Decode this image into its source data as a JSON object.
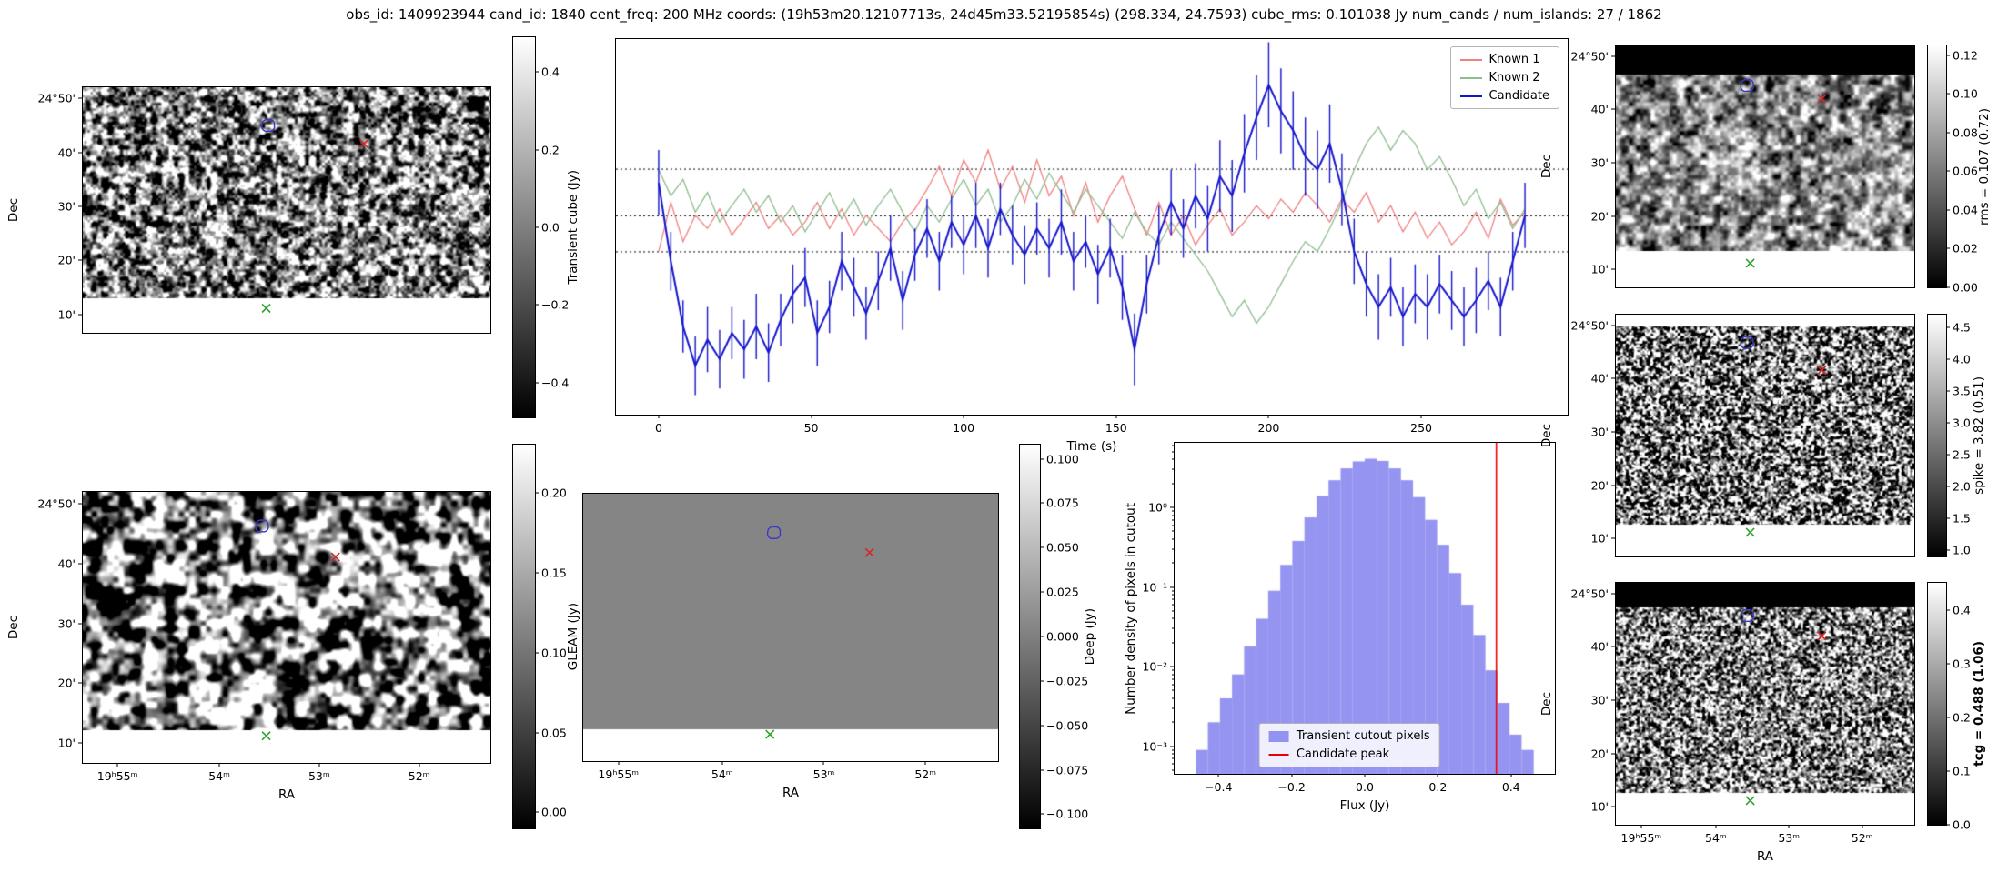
{
  "title": "obs_id: 1409923944 cand_id: 1840 cent_freq: 200 MHz coords: (19h53m20.12107713s, 24d45m33.52195854s) (298.334, 24.7593) cube_rms: 0.101038 Jy num_cands / num_islands: 27 / 1862",
  "colors": {
    "contour": "#3a3ac8",
    "red_x": "#d62728",
    "green_x": "#2ca02c",
    "hline": "#000000",
    "known1": "#f08080",
    "known2": "#8fbc8f",
    "candidate": "#1515cc",
    "hist_bar": "#7b7bee",
    "peak_line": "#e80000"
  },
  "axes": {
    "dec_label": "Dec",
    "ra_label": "RA",
    "dec_ticks": [
      "24°50'",
      "40'",
      "30'",
      "20'",
      "10'"
    ],
    "dec_fracs": [
      0.045,
      0.265,
      0.485,
      0.705,
      0.925
    ],
    "ra_ticks": [
      "19ʰ55ᵐ",
      "54ᵐ",
      "53ᵐ",
      "52ᵐ"
    ],
    "ra_fracs": [
      0.085,
      0.335,
      0.58,
      0.825
    ]
  },
  "panels": [
    {
      "id": "transient-cutout",
      "el": "transient-cutout-panel",
      "cb_el": "transient-colorbar",
      "noise": {
        "cell": 6,
        "contrast": 2.3,
        "seed": 11
      },
      "bottom_band": 0.14,
      "show_dec": true,
      "show_ra": false,
      "colorbar": {
        "label": "Transient cube (Jy)",
        "ticks": [
          "0.4",
          "0.2",
          "0.0",
          "−0.2",
          "−0.4"
        ],
        "tick_vals": [
          0.4,
          0.2,
          0,
          -0.2,
          -0.4
        ],
        "vmin": -0.49,
        "vmax": 0.49
      },
      "markers": {
        "contour": [
          0.455,
          0.16
        ],
        "red_x": [
          0.69,
          0.23
        ],
        "green_x": [
          0.45,
          0.9
        ]
      }
    },
    {
      "id": "gleam-cutout",
      "el": "gleam-cutout-panel",
      "cb_el": "gleam-colorbar",
      "noise": {
        "cell": 12,
        "contrast": 3.2,
        "seed": 77
      },
      "bottom_band": 0.12,
      "show_dec": true,
      "show_ra": true,
      "colorbar": {
        "label": "GLEAM (Jy)",
        "ticks": [
          "0.20",
          "0.15",
          "0.10",
          "0.05",
          "0.00"
        ],
        "tick_vals": [
          0.2,
          0.15,
          0.1,
          0.05,
          0
        ],
        "vmin": -0.01,
        "vmax": 0.23
      },
      "markers": {
        "contour": [
          0.44,
          0.13
        ],
        "red_x": [
          0.62,
          0.24
        ],
        "green_x": [
          0.45,
          0.9
        ]
      }
    },
    {
      "id": "deep-cutout",
      "el": "deep-cutout-panel",
      "cb_el": "deep-colorbar",
      "noise": {
        "cell": 8,
        "contrast": 0,
        "seed": 5
      },
      "bottom_band": 0.12,
      "show_dec": false,
      "show_ra": true,
      "colorbar": {
        "label": "Deep (Jy)",
        "ticks": [
          "0.100",
          "0.075",
          "0.050",
          "0.025",
          "0.000",
          "−0.025",
          "−0.050",
          "−0.075",
          "−0.100"
        ],
        "tick_vals": [
          0.1,
          0.075,
          0.05,
          0.025,
          0,
          -0.025,
          -0.05,
          -0.075,
          -0.1
        ],
        "vmin": -0.108,
        "vmax": 0.108
      },
      "markers": {
        "contour": [
          0.46,
          0.15
        ],
        "red_x": [
          0.69,
          0.22
        ],
        "green_x": [
          0.45,
          0.9
        ]
      }
    },
    {
      "id": "rms-cutout",
      "el": "rms-cutout-panel",
      "cb_el": "rms-colorbar",
      "noise": {
        "cell": 8,
        "contrast": 1.5,
        "seed": 31,
        "base": 0.03
      },
      "top_band": {
        "color": "#000000",
        "frac": 0.12
      },
      "bottom_band": 0.15,
      "show_dec": true,
      "show_ra": false,
      "colorbar": {
        "label": "rms = 0.107 (0.72)",
        "ticks": [
          "0.12",
          "0.10",
          "0.08",
          "0.06",
          "0.04",
          "0.02",
          "0.00"
        ],
        "tick_vals": [
          0.12,
          0.1,
          0.08,
          0.06,
          0.04,
          0.02,
          0
        ],
        "vmin": 0,
        "vmax": 0.125
      },
      "markers": {
        "contour": [
          0.44,
          0.17
        ],
        "red_x": [
          0.69,
          0.22
        ],
        "green_x": [
          0.45,
          0.9
        ]
      }
    },
    {
      "id": "spike-cutout",
      "el": "spike-cutout-panel",
      "cb_el": "spike-colorbar",
      "noise": {
        "cell": 3,
        "contrast": 2.6,
        "seed": 55,
        "base": -0.04
      },
      "top_band": {
        "color": "#ffffff",
        "frac": 0.05
      },
      "bottom_band": 0.13,
      "show_dec": true,
      "show_ra": false,
      "colorbar": {
        "label": "spike = 3.82 (0.51)",
        "ticks": [
          "4.5",
          "4.0",
          "3.5",
          "3.0",
          "2.5",
          "2.0",
          "1.5",
          "1.0"
        ],
        "tick_vals": [
          4.5,
          4,
          3.5,
          3,
          2.5,
          2,
          1.5,
          1
        ],
        "vmin": 0.9,
        "vmax": 4.7
      },
      "markers": {
        "contour": [
          0.44,
          0.12
        ],
        "red_x": [
          0.69,
          0.23
        ],
        "green_x": [
          0.45,
          0.9
        ]
      }
    },
    {
      "id": "tcg-cutout",
      "el": "tcg-cutout-panel",
      "cb_el": "tcg-colorbar",
      "noise": {
        "cell": 3,
        "contrast": 2.3,
        "seed": 99
      },
      "top_band": {
        "color": "#000000",
        "frac": 0.1
      },
      "bottom_band": 0.13,
      "show_dec": true,
      "show_ra": true,
      "colorbar": {
        "label": "tcg = 0.488 (1.06)",
        "bold": true,
        "ticks": [
          "0.4",
          "0.3",
          "0.2",
          "0.1",
          "0.0"
        ],
        "tick_vals": [
          0.4,
          0.3,
          0.2,
          0.1,
          0
        ],
        "vmin": 0,
        "vmax": 0.45
      },
      "markers": {
        "contour": [
          0.44,
          0.14
        ],
        "red_x": [
          0.69,
          0.22
        ],
        "green_x": [
          0.45,
          0.9
        ]
      }
    }
  ],
  "chart_data": [
    {
      "id": "lightcurve",
      "type": "line",
      "xlabel": "Time (s)",
      "x": {
        "start": 0,
        "step": 4,
        "count": 72
      },
      "x_ticks": [
        0,
        50,
        100,
        150,
        200,
        250
      ],
      "x_tick_labels": [
        "0",
        "50",
        "100",
        "150",
        "200",
        "250"
      ],
      "xlim": [
        -14,
        298
      ],
      "ylim": [
        -0.45,
        0.7
      ],
      "hlines": [
        0.303,
        0.16,
        0.05
      ],
      "hline_style": "dotted",
      "legend_position": "upper right",
      "series": [
        {
          "name": "Known 1",
          "color": "#f08080",
          "lw": 1.3,
          "values": [
            0.05,
            0.2,
            0.08,
            0.16,
            0.12,
            0.18,
            0.1,
            0.15,
            0.2,
            0.12,
            0.16,
            0.1,
            0.14,
            0.2,
            0.12,
            0.18,
            0.1,
            0.16,
            0.12,
            0.08,
            0.14,
            0.18,
            0.24,
            0.31,
            0.22,
            0.33,
            0.26,
            0.36,
            0.24,
            0.31,
            0.2,
            0.33,
            0.22,
            0.28,
            0.16,
            0.26,
            0.14,
            0.22,
            0.28,
            0.18,
            0.1,
            0.2,
            0.1,
            0.16,
            0.07,
            0.13,
            0.18,
            0.1,
            0.14,
            0.19,
            0.15,
            0.21,
            0.17,
            0.23,
            0.19,
            0.14,
            0.21,
            0.17,
            0.23,
            0.14,
            0.19,
            0.11,
            0.17,
            0.09,
            0.14,
            0.07,
            0.11,
            0.17,
            0.09,
            0.21,
            0.13,
            0.17
          ]
        },
        {
          "name": "Known 2",
          "color": "#8fbc8f",
          "lw": 1.3,
          "values": [
            0.3,
            0.22,
            0.27,
            0.17,
            0.23,
            0.14,
            0.19,
            0.24,
            0.17,
            0.22,
            0.14,
            0.19,
            0.11,
            0.17,
            0.23,
            0.15,
            0.21,
            0.13,
            0.19,
            0.24,
            0.17,
            0.11,
            0.19,
            0.14,
            0.21,
            0.27,
            0.19,
            0.24,
            0.14,
            0.19,
            0.27,
            0.21,
            0.29,
            0.23,
            0.17,
            0.24,
            0.19,
            0.14,
            0.09,
            0.17,
            0.11,
            0.07,
            0.14,
            0.09,
            0.04,
            -0.01,
            -0.08,
            -0.15,
            -0.1,
            -0.17,
            -0.12,
            -0.05,
            0.02,
            0.08,
            0.05,
            0.12,
            0.2,
            0.3,
            0.38,
            0.43,
            0.36,
            0.42,
            0.38,
            0.3,
            0.34,
            0.27,
            0.19,
            0.24,
            0.15,
            0.2,
            0.12,
            0.18
          ]
        },
        {
          "name": "Candidate",
          "color": "#1515cc",
          "lw": 2,
          "values": [
            0.26,
            0.02,
            -0.18,
            -0.3,
            -0.22,
            -0.28,
            -0.2,
            -0.25,
            -0.18,
            -0.26,
            -0.16,
            -0.08,
            -0.03,
            -0.2,
            -0.12,
            0.02,
            -0.06,
            -0.14,
            -0.04,
            0.06,
            -0.1,
            0.04,
            0.12,
            0.02,
            0.14,
            0.07,
            0.16,
            0.06,
            0.18,
            0.1,
            0.04,
            0.12,
            0.06,
            0.14,
            0.02,
            0.08,
            -0.02,
            0.06,
            -0.06,
            -0.25,
            -0.05,
            0.1,
            0.2,
            0.12,
            0.22,
            0.15,
            0.28,
            0.22,
            0.35,
            0.46,
            0.56,
            0.48,
            0.42,
            0.34,
            0.3,
            0.38,
            0.24,
            0.05,
            -0.05,
            -0.12,
            -0.06,
            -0.15,
            -0.08,
            -0.12,
            -0.05,
            -0.1,
            -0.15,
            -0.1,
            -0.04,
            -0.12,
            0.02,
            0.16
          ],
          "yerr": [
            0.1,
            0.09,
            0.08,
            0.09,
            0.1,
            0.09,
            0.08,
            0.09,
            0.1,
            0.09,
            0.08,
            0.09,
            0.09,
            0.1,
            0.08,
            0.09,
            0.09,
            0.08,
            0.09,
            0.1,
            0.09,
            0.08,
            0.09,
            0.09,
            0.08,
            0.09,
            0.1,
            0.09,
            0.08,
            0.09,
            0.09,
            0.08,
            0.09,
            0.1,
            0.09,
            0.08,
            0.09,
            0.09,
            0.1,
            0.11,
            0.09,
            0.09,
            0.1,
            0.09,
            0.1,
            0.1,
            0.11,
            0.11,
            0.12,
            0.13,
            0.13,
            0.13,
            0.12,
            0.12,
            0.12,
            0.12,
            0.11,
            0.1,
            0.1,
            0.1,
            0.09,
            0.09,
            0.09,
            0.1,
            0.09,
            0.09,
            0.09,
            0.1,
            0.09,
            0.09,
            0.09,
            0.1
          ]
        }
      ]
    },
    {
      "id": "pixel-histogram",
      "type": "bar",
      "xlabel": "Flux (Jy)",
      "ylabel": "Number density of pixels in cutout",
      "yscale": "log",
      "xlim": [
        -0.52,
        0.52
      ],
      "ylim": [
        0.00045,
        6.5
      ],
      "x_ticks": [
        -0.4,
        -0.2,
        0,
        0.2,
        0.4
      ],
      "x_tick_labels": [
        "−0.4",
        "−0.2",
        "0.0",
        "0.2",
        "0.4"
      ],
      "y_tick_vals": [
        1,
        0.1,
        0.01,
        0.001
      ],
      "y_tick_labels": [
        "10⁰",
        "10⁻¹",
        "10⁻²",
        "10⁻³"
      ],
      "bins": {
        "start": -0.462,
        "width": 0.033
      },
      "counts": [
        0.0009,
        0.002,
        0.004,
        0.008,
        0.018,
        0.04,
        0.09,
        0.19,
        0.38,
        0.75,
        1.4,
        2.2,
        3.1,
        3.8,
        4.1,
        3.85,
        3.1,
        2.2,
        1.35,
        0.7,
        0.34,
        0.15,
        0.06,
        0.025,
        0.009,
        0.0035,
        0.0014,
        0.0009
      ],
      "bar_color": "#7b7bee",
      "bar_alpha": 0.8,
      "candidate_peak": 0.36,
      "peak_color": "#e80000",
      "legend": [
        "Transient cutout pixels",
        "Candidate peak"
      ]
    }
  ]
}
